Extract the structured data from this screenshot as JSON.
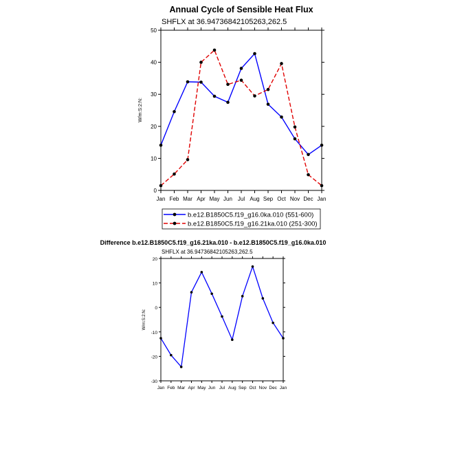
{
  "chart_data": [
    {
      "type": "line",
      "title": "Annual Cycle of Sensible Heat Flux",
      "subtitle": "SHFLX at 36.94736842105263,262.5",
      "ylabel": "W/m:S:2:N:",
      "xlabel": "",
      "ylim": [
        0,
        50
      ],
      "yticks": [
        0,
        10,
        20,
        30,
        40,
        50
      ],
      "categories": [
        "Jan",
        "Feb",
        "Mar",
        "Apr",
        "May",
        "Jun",
        "Jul",
        "Aug",
        "Sep",
        "Oct",
        "Nov",
        "Dec",
        "Jan"
      ],
      "legend_position": "bottom",
      "series": [
        {
          "name": "b.e12.B1850C5.f19_g16.0ka.010 (551-600)",
          "color": "#0000ff",
          "line_style": "solid",
          "values": [
            14.1,
            24.6,
            33.9,
            33.8,
            29.4,
            27.5,
            38.1,
            42.7,
            26.9,
            22.9,
            16.1,
            11.2,
            14.1
          ]
        },
        {
          "name": "b.e12.B1850C5.f19_g16.21ka.010 (251-300)",
          "color": "#e00000",
          "line_style": "dashed",
          "values": [
            1.5,
            5.1,
            9.6,
            40.0,
            43.8,
            33.1,
            34.4,
            29.5,
            31.5,
            39.6,
            19.8,
            4.9,
            1.5
          ]
        }
      ]
    },
    {
      "type": "line",
      "title": "Difference b.e12.B1850C5.f19_g16.21ka.010 - b.e12.B1850C5.f19_g16.0ka.010",
      "subtitle": "SHFLX at 36.94736842105263,262.5",
      "ylabel": "W/m:S:2:N:",
      "xlabel": "",
      "ylim": [
        -30,
        20
      ],
      "yticks": [
        -30,
        -20,
        -10,
        0,
        10,
        20
      ],
      "categories": [
        "Jan",
        "Feb",
        "Mar",
        "Apr",
        "May",
        "Jun",
        "Jul",
        "Aug",
        "Sep",
        "Oct",
        "Nov",
        "Dec",
        "Jan"
      ],
      "series": [
        {
          "color": "#0000ff",
          "line_style": "solid",
          "values": [
            -12.6,
            -19.5,
            -24.3,
            6.2,
            14.4,
            5.6,
            -3.7,
            -13.2,
            4.6,
            16.7,
            3.7,
            -6.3,
            -12.6
          ]
        }
      ]
    }
  ]
}
